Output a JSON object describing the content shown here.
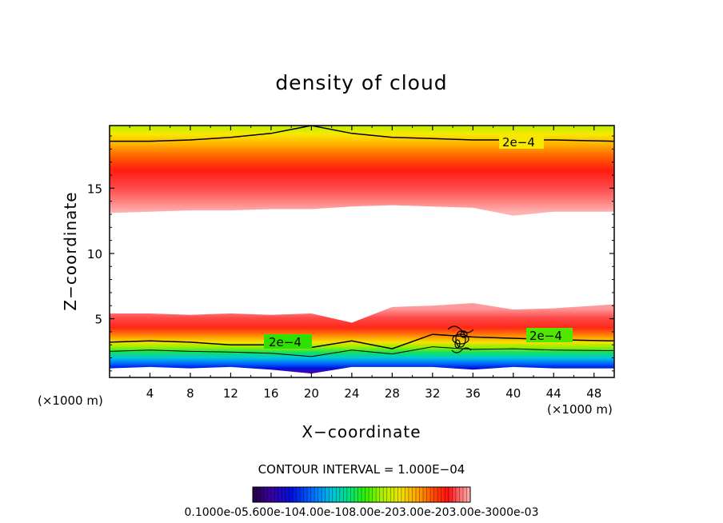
{
  "chart_data": {
    "type": "heatmap",
    "title": "density of cloud",
    "xlabel": "X−coordinate",
    "ylabel": "Z−coordinate",
    "x_unit_left": "(×1000 m)",
    "x_unit_right": "(×1000 m)",
    "xlim": [
      0,
      50
    ],
    "ylim": [
      0.5,
      19.8
    ],
    "x_ticks": [
      4,
      8,
      12,
      16,
      20,
      24,
      28,
      32,
      36,
      40,
      44,
      48
    ],
    "x_tick_labels": [
      "4",
      "8",
      "12",
      "16",
      "20",
      "24",
      "28",
      "32",
      "36",
      "40",
      "44",
      "48"
    ],
    "y_ticks": [
      5,
      10,
      15
    ],
    "y_tick_labels": [
      "5",
      "10",
      "15"
    ],
    "contour_interval_text": "CONTOUR INTERVAL = 1.000E−04",
    "contour_labels": [
      "2e−4",
      "2e−4",
      "2e−4"
    ],
    "colorbar_labels_text": "0.1000e-05.600e-104.00e-108.00e-203.00e-203.00e-3000e-03",
    "colorbar_min": 1e-06,
    "colorbar_max": 0.0003,
    "colormap": [
      "#230040",
      "#3a009a",
      "#0010e0",
      "#0070ff",
      "#00c0e0",
      "#00e080",
      "#30f000",
      "#b0f000",
      "#f0e000",
      "#ffa000",
      "#ff4000",
      "#ff1010",
      "#ff6868",
      "#ffb0b0"
    ],
    "upper_layer": {
      "base_z": [
        13.1,
        13.2,
        13.3,
        13.3,
        13.4,
        13.4,
        13.6,
        13.7,
        13.6,
        13.5,
        12.9,
        13.2,
        13.2
      ],
      "base_x": [
        0,
        4,
        8,
        12,
        16,
        20,
        24,
        28,
        32,
        36,
        40,
        44,
        50
      ],
      "core_z": 15.2,
      "contour_2e4_z": [
        18.6,
        18.6,
        18.7,
        18.9,
        19.2,
        19.8,
        19.2,
        18.9,
        18.8,
        18.7,
        18.7,
        18.7,
        18.6
      ],
      "contour_2e4_x": [
        0,
        4,
        8,
        12,
        16,
        20,
        24,
        28,
        32,
        36,
        40,
        44,
        50
      ]
    },
    "lower_layer": {
      "top_z": [
        5.4,
        5.4,
        5.3,
        5.4,
        5.3,
        5.4,
        4.7,
        5.9,
        6.0,
        6.2,
        5.7,
        5.8,
        6.1
      ],
      "bottom_z": [
        1.2,
        1.3,
        1.2,
        1.3,
        1.1,
        0.8,
        1.3,
        1.3,
        1.3,
        1.1,
        1.3,
        1.2,
        1.2
      ],
      "contour_2e4_z": [
        3.2,
        3.3,
        3.2,
        3.0,
        3.0,
        2.8,
        3.3,
        2.7,
        3.8,
        3.6,
        3.5,
        3.4,
        3.3
      ],
      "x": [
        0,
        4,
        8,
        12,
        16,
        20,
        24,
        28,
        32,
        36,
        40,
        44,
        50
      ]
    }
  }
}
